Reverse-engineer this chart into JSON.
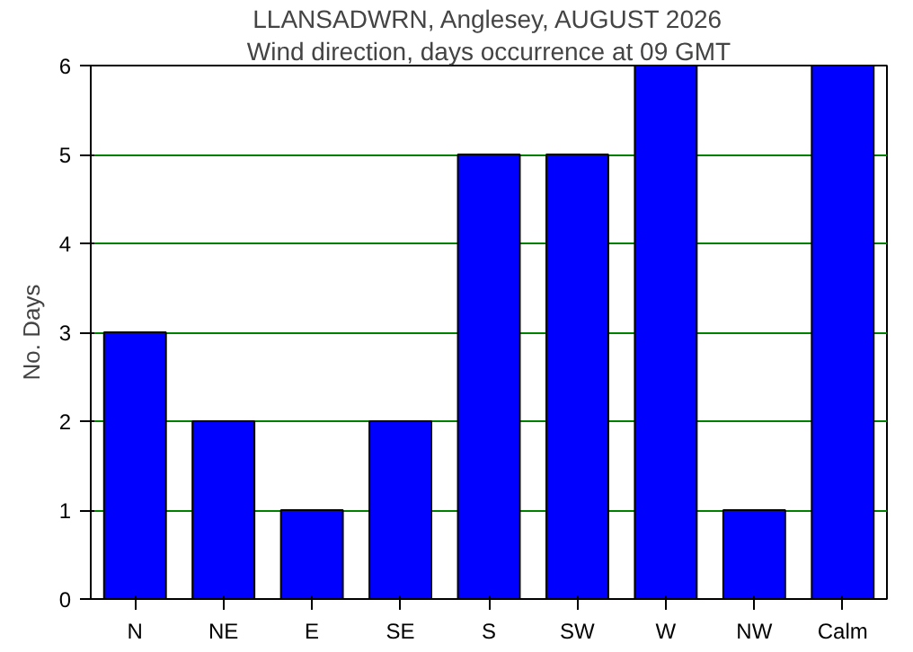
{
  "chart_data": {
    "type": "bar",
    "title": "LLANSADWRN, Anglesey, AUGUST 2026",
    "subtitle": "Wind direction, days occurrence at 09 GMT",
    "ylabel": "No. Days",
    "categories": [
      "N",
      "NE",
      "E",
      "SE",
      "S",
      "SW",
      "W",
      "NW",
      "Calm"
    ],
    "values": [
      3,
      2,
      1,
      2,
      5,
      5,
      6,
      1,
      6
    ],
    "color": "#0000ff",
    "ylim": [
      0,
      6
    ],
    "yticks": [
      0,
      1,
      2,
      3,
      4,
      5,
      6
    ],
    "grid": "y"
  }
}
